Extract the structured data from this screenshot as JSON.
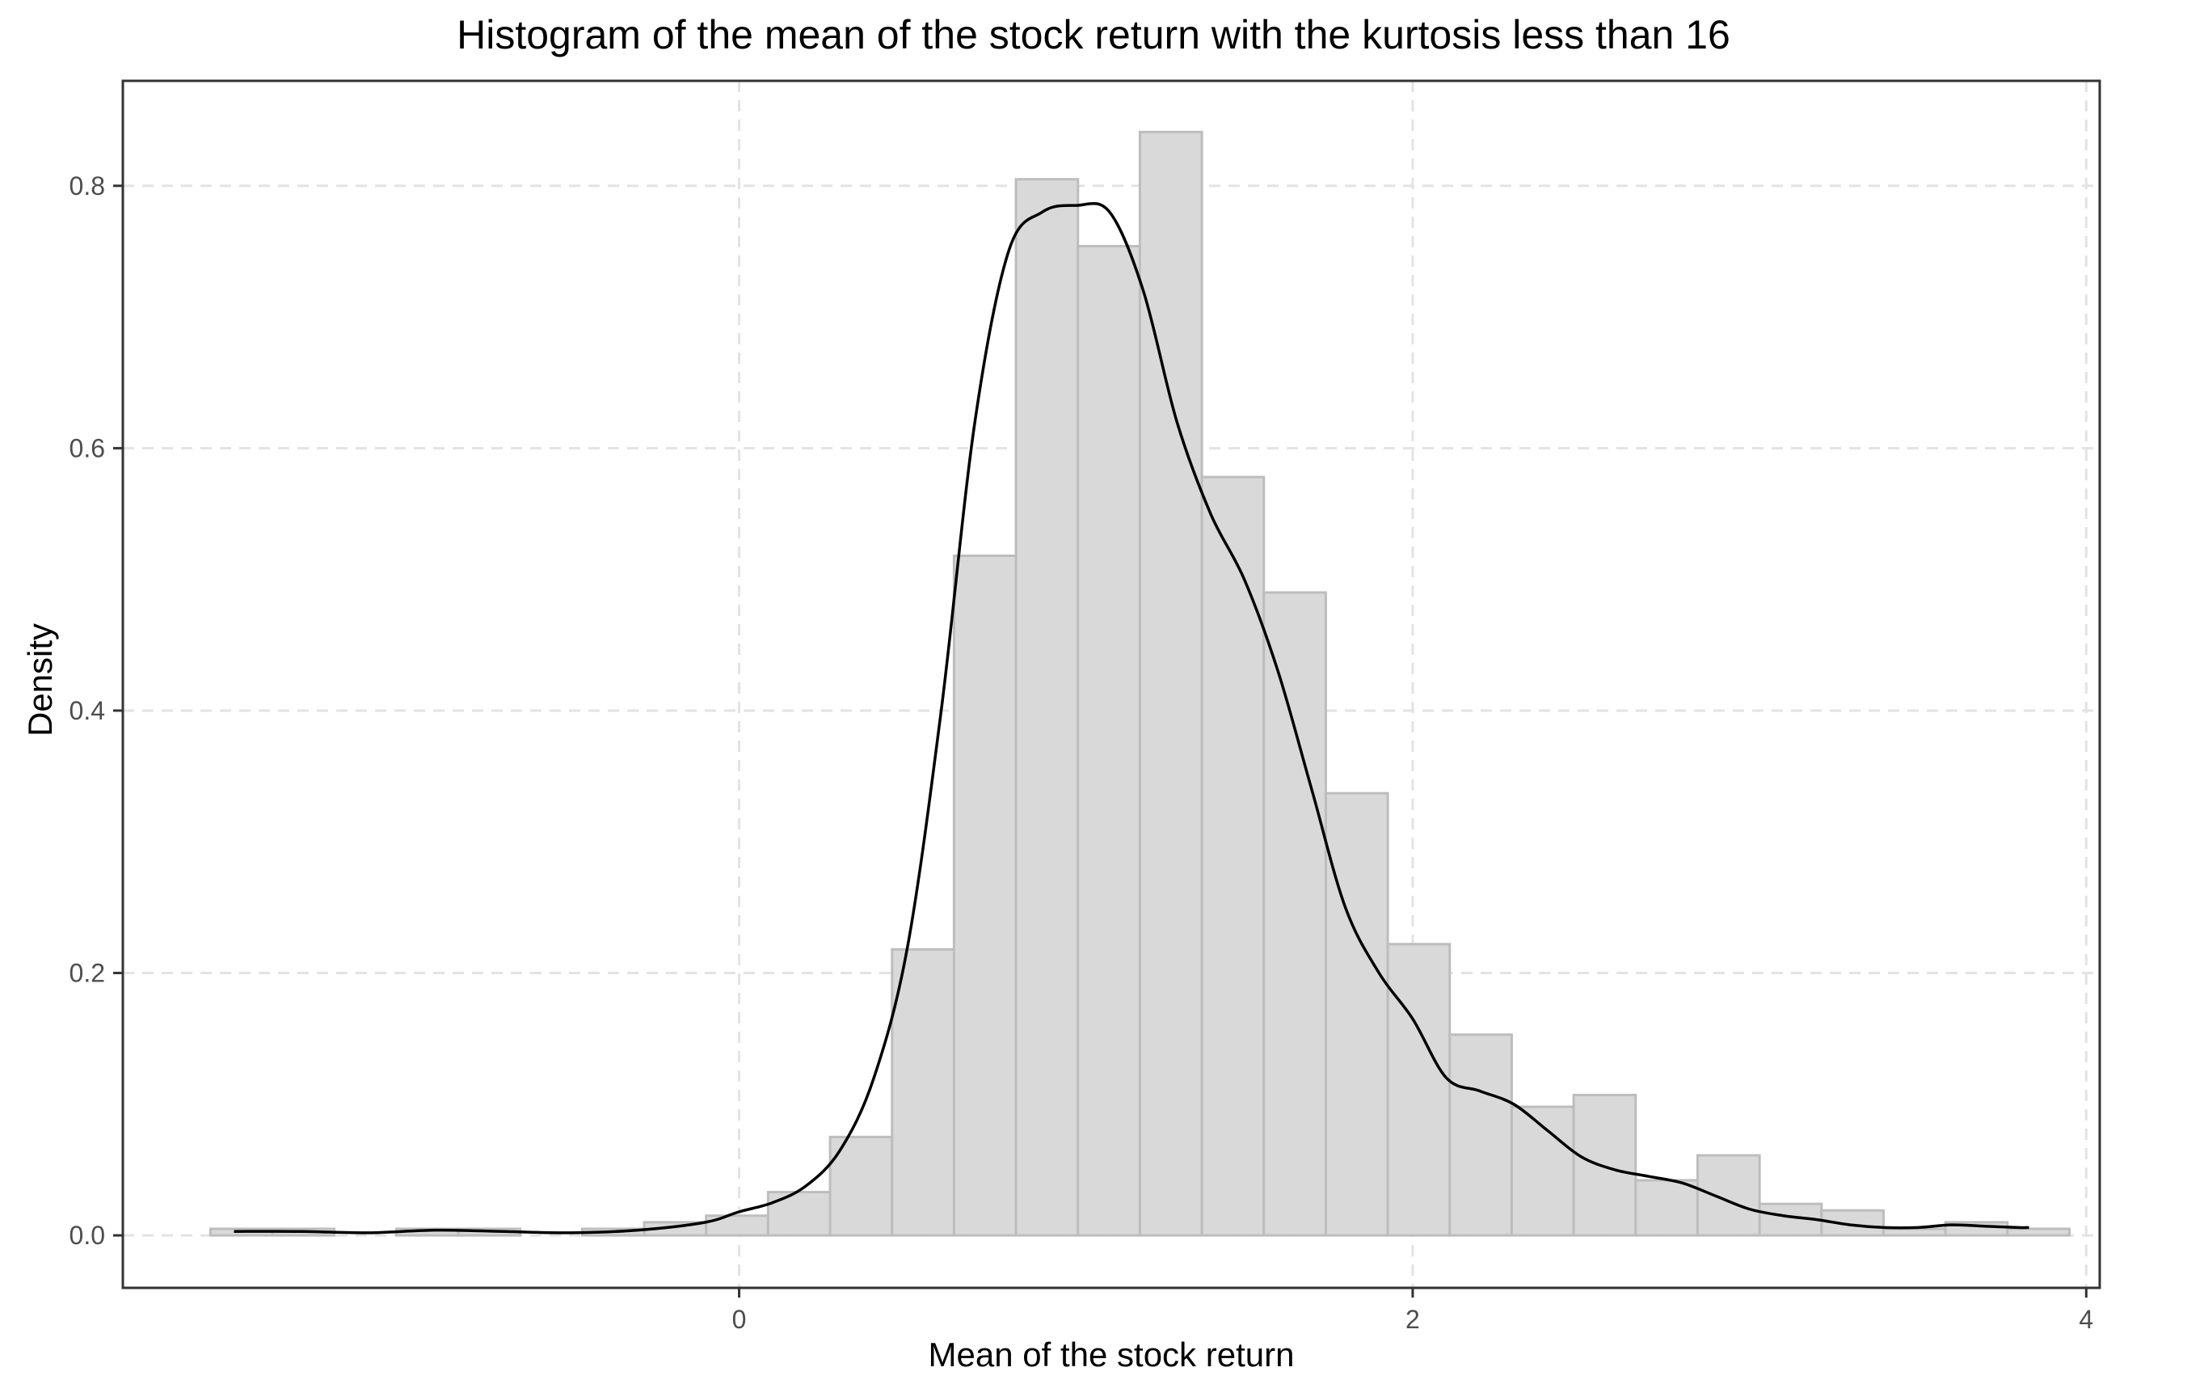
{
  "chart_data": {
    "type": "bar",
    "title": "Histogram of the mean of the stock return with the kurtosis less than 16",
    "xlabel": "Mean of the stock return",
    "ylabel": "Density",
    "xlim": [
      -1.83,
      4.04
    ],
    "ylim": [
      -0.04,
      0.88
    ],
    "x_ticks": [
      0,
      2,
      4
    ],
    "x_tick_labels": [
      "0",
      "2",
      "4"
    ],
    "y_ticks": [
      0.0,
      0.2,
      0.4,
      0.6,
      0.8
    ],
    "y_tick_labels": [
      "0.0",
      "0.2",
      "0.4",
      "0.6",
      "0.8"
    ],
    "grid": true,
    "legend": "none",
    "histogram": {
      "bin_width": 0.184,
      "bin_starts": [
        -1.57,
        -1.386,
        -1.202,
        -1.018,
        -0.834,
        -0.65,
        -0.466,
        -0.282,
        -0.098,
        0.086,
        0.27,
        0.454,
        0.638,
        0.822,
        1.006,
        1.19,
        1.374,
        1.558,
        1.742,
        1.926,
        2.11,
        2.294,
        2.478,
        2.662,
        2.846,
        3.03,
        3.214,
        3.398,
        3.582,
        3.766
      ],
      "values": [
        0.005,
        0.005,
        0.0,
        0.005,
        0.005,
        0.0,
        0.005,
        0.01,
        0.015,
        0.033,
        0.075,
        0.218,
        0.518,
        0.805,
        0.754,
        0.841,
        0.578,
        0.49,
        0.337,
        0.222,
        0.153,
        0.098,
        0.107,
        0.042,
        0.061,
        0.024,
        0.019,
        0.005,
        0.01,
        0.005
      ]
    },
    "density_curve": {
      "x": [
        -1.5,
        -1.3,
        -1.1,
        -0.9,
        -0.7,
        -0.5,
        -0.3,
        -0.1,
        0.0,
        0.1,
        0.2,
        0.3,
        0.4,
        0.5,
        0.6,
        0.7,
        0.8,
        0.9,
        1.0,
        1.1,
        1.2,
        1.3,
        1.4,
        1.5,
        1.6,
        1.7,
        1.8,
        1.9,
        2.0,
        2.1,
        2.2,
        2.3,
        2.4,
        2.5,
        2.6,
        2.7,
        2.8,
        2.9,
        3.0,
        3.1,
        3.2,
        3.3,
        3.4,
        3.5,
        3.6,
        3.7,
        3.8,
        3.83
      ],
      "y": [
        0.003,
        0.003,
        0.002,
        0.004,
        0.003,
        0.002,
        0.004,
        0.01,
        0.018,
        0.025,
        0.038,
        0.065,
        0.12,
        0.22,
        0.4,
        0.62,
        0.75,
        0.78,
        0.785,
        0.78,
        0.72,
        0.62,
        0.55,
        0.5,
        0.43,
        0.34,
        0.25,
        0.2,
        0.165,
        0.12,
        0.11,
        0.1,
        0.08,
        0.06,
        0.05,
        0.045,
        0.04,
        0.03,
        0.02,
        0.015,
        0.012,
        0.008,
        0.006,
        0.006,
        0.008,
        0.007,
        0.006,
        0.006
      ]
    },
    "colors": {
      "bar_fill": "#d9d9d9",
      "bar_stroke": "#bdbdbd",
      "curve": "#000000",
      "grid": "#e3e3e3",
      "panel_border": "#333333",
      "tick_text": "#4d4d4d"
    }
  }
}
